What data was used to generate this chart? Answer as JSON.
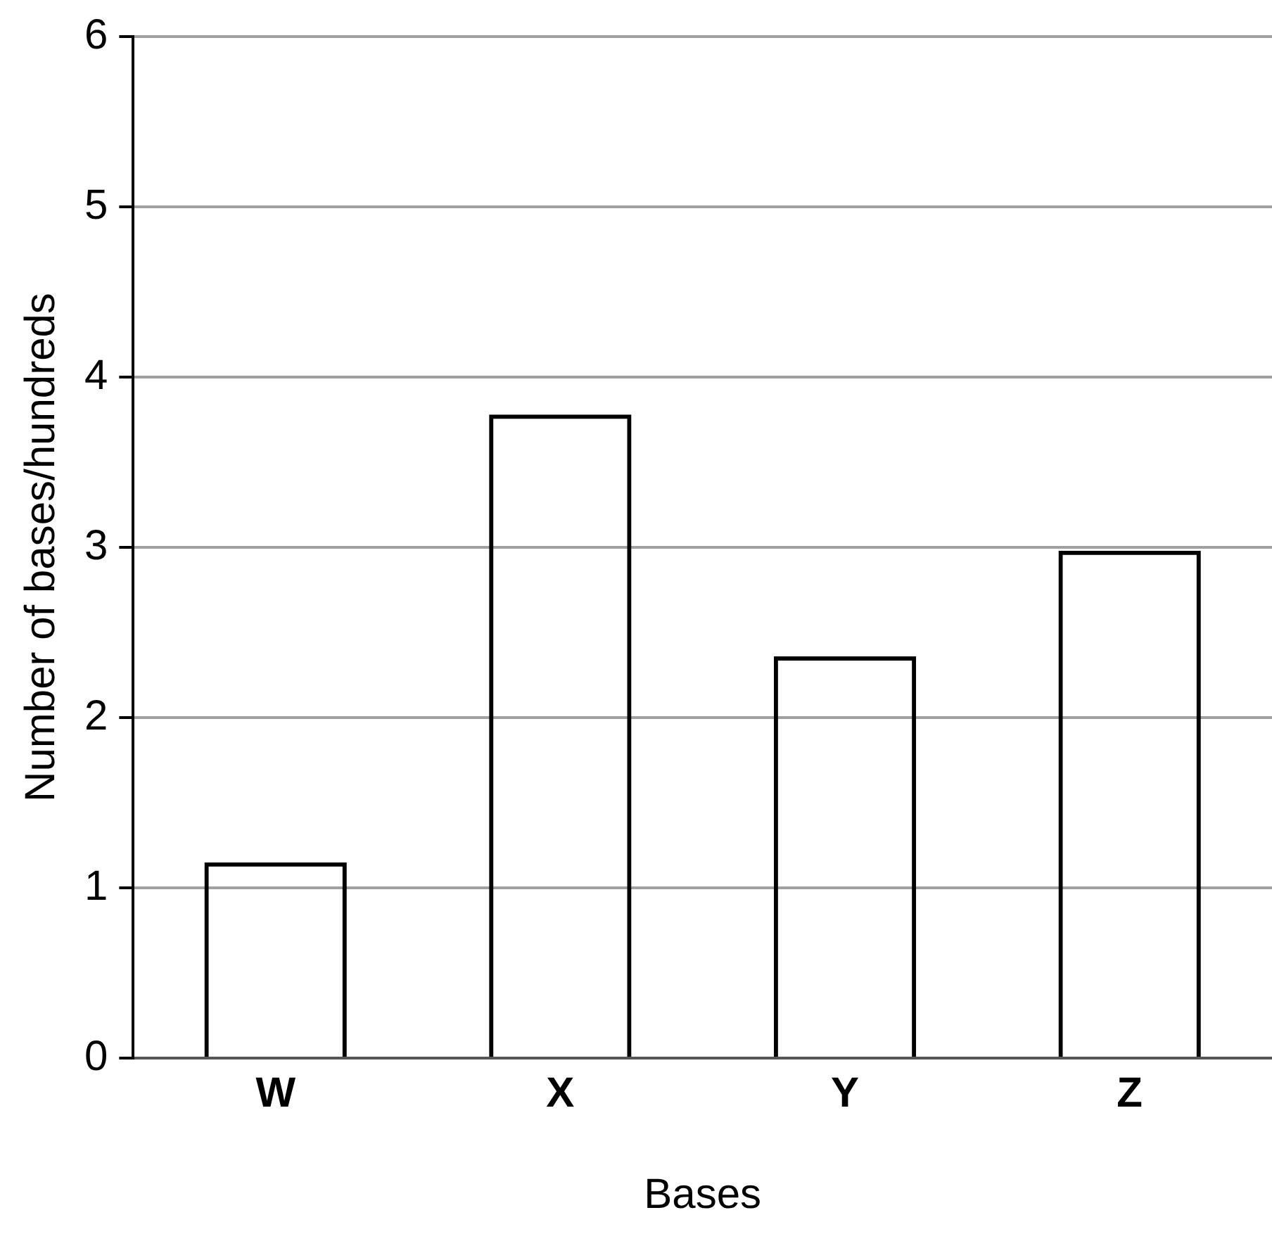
{
  "chart_data": {
    "type": "bar",
    "xlabel": "Bases",
    "ylabel": "Number of bases/hundreds",
    "categories": [
      "W",
      "X",
      "Y",
      "Z"
    ],
    "values": [
      1.15,
      3.78,
      2.36,
      2.98
    ],
    "color": "#000000",
    "ylim": [
      0,
      6
    ],
    "yticks": [
      0,
      1,
      2,
      3,
      4,
      5,
      6
    ],
    "grid": "y",
    "legend": false
  }
}
